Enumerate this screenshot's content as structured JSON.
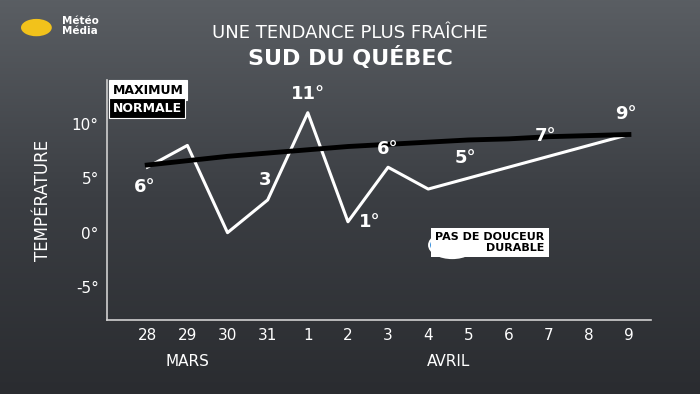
{
  "chart_data": {
    "type": "line",
    "title": "UNE TENDANCE PLUS FRAÎCHE",
    "subtitle": "SUD DU QUÉBEC",
    "logo": [
      "Météo",
      "Média"
    ],
    "y_label": "TEMPÉRATURE",
    "categories": [
      "28",
      "29",
      "30",
      "31",
      "1",
      "2",
      "3",
      "4",
      "5",
      "6",
      "7",
      "8",
      "9"
    ],
    "category_groups": [
      {
        "label": "MARS",
        "categories": [
          "28",
          "29",
          "30",
          "31"
        ]
      },
      {
        "label": "AVRIL",
        "categories": [
          "1",
          "2",
          "3",
          "4",
          "5",
          "6",
          "7",
          "8",
          "9"
        ]
      }
    ],
    "series": [
      {
        "name": "MAXIMUM",
        "color": "#ffffff",
        "values": [
          6,
          8,
          0,
          3,
          11,
          1,
          6,
          4,
          5,
          6,
          7,
          8,
          9
        ],
        "value_labels": [
          "6°",
          null,
          null,
          "3",
          "11°",
          "1°",
          "6°",
          null,
          "5°",
          null,
          "7°",
          null,
          "9°"
        ]
      },
      {
        "name": "NORMALE",
        "color": "#000000",
        "values": [
          6.2,
          6.6,
          7.0,
          7.3,
          7.6,
          7.9,
          8.1,
          8.3,
          8.5,
          8.6,
          8.8,
          8.9,
          9.0
        ]
      }
    ],
    "data_labels": true,
    "ylim": [
      -8,
      14
    ],
    "yticks": [
      {
        "value": -5,
        "label": "-5°"
      },
      {
        "value": 0,
        "label": "0°"
      },
      {
        "value": 5,
        "label": "5°"
      },
      {
        "value": 10,
        "label": "10°"
      }
    ],
    "legend": "upper left",
    "grid": false,
    "annotation": "PAS DE DOUCEUR DURABLE"
  }
}
